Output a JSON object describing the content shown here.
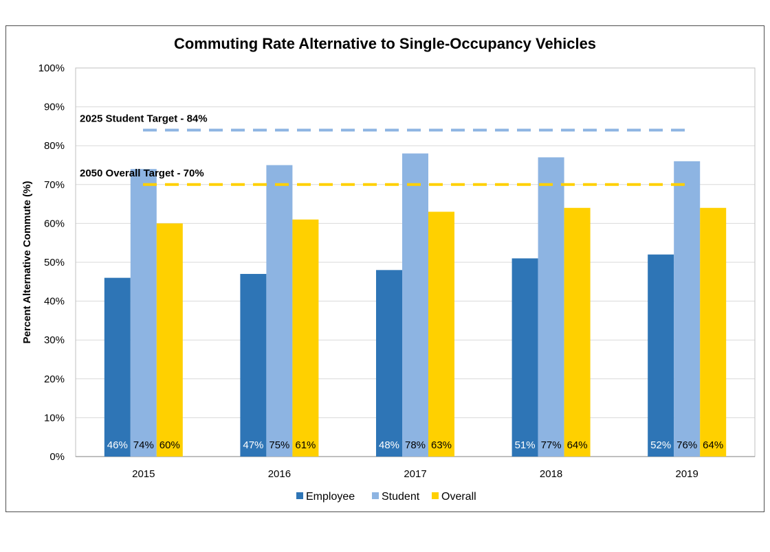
{
  "chart_data": {
    "type": "bar",
    "title": "Commuting Rate Alternative to Single-Occupancy Vehicles",
    "xlabel": "",
    "ylabel": "Percent Alternative Commute (%)",
    "ylim": [
      0,
      100
    ],
    "y_ticks": [
      "0%",
      "10%",
      "20%",
      "30%",
      "40%",
      "50%",
      "60%",
      "70%",
      "80%",
      "90%",
      "100%"
    ],
    "categories": [
      "2015",
      "2016",
      "2017",
      "2018",
      "2019"
    ],
    "series": [
      {
        "name": "Employee",
        "color": "#2e75b6",
        "label_color": "#ffffff",
        "values": [
          46,
          47,
          48,
          51,
          52
        ],
        "labels": [
          "46%",
          "47%",
          "48%",
          "51%",
          "52%"
        ]
      },
      {
        "name": "Student",
        "color": "#8db4e2",
        "label_color": "#000000",
        "values": [
          74,
          75,
          78,
          77,
          76
        ],
        "labels": [
          "74%",
          "75%",
          "78%",
          "77%",
          "76%"
        ]
      },
      {
        "name": "Overall",
        "color": "#ffd000",
        "label_color": "#000000",
        "values": [
          60,
          61,
          63,
          64,
          64
        ],
        "labels": [
          "60%",
          "61%",
          "63%",
          "64%",
          "64%"
        ]
      }
    ],
    "targets": [
      {
        "label": "2025 Student Target - 84%",
        "value": 84,
        "color": "#8db4e2"
      },
      {
        "label": "2050 Overall Target - 70%",
        "value": 70,
        "color": "#ffd000"
      }
    ],
    "grid": true,
    "legend_position": "bottom"
  }
}
